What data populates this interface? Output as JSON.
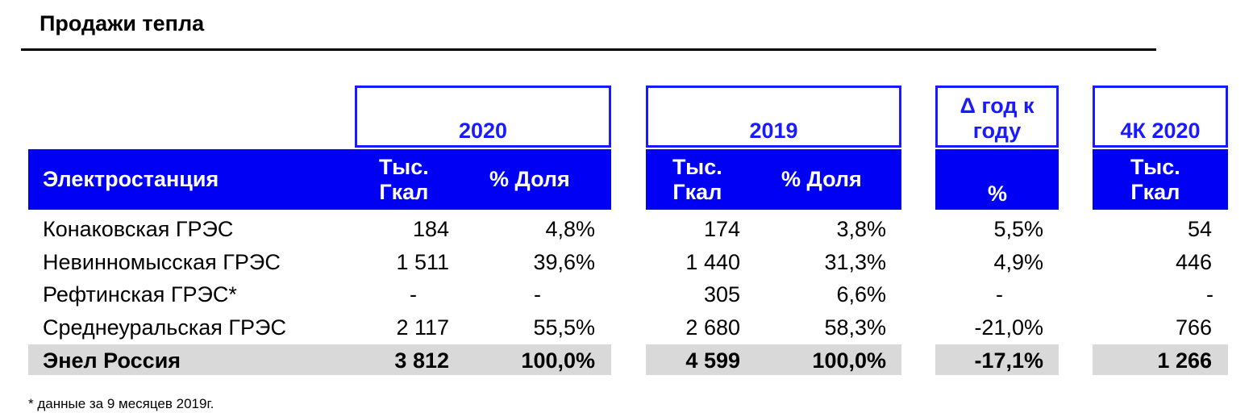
{
  "title": "Продажи тепла",
  "groups": {
    "y2020": "2020",
    "y2019": "2019",
    "delta": "Δ год к году",
    "q4": "4К 2020"
  },
  "headers": {
    "station": "Электростанция",
    "gcal_line1": "Тыс.",
    "gcal_line2": "Гкал",
    "share": "% Доля",
    "pct": "%"
  },
  "rows": [
    {
      "name": "Конаковская ГРЭС",
      "v2020": "184",
      "s2020": "4,8%",
      "v2019": "174",
      "s2019": "3,8%",
      "delta": "5,5%",
      "q4": "54"
    },
    {
      "name": "Невинномысская ГРЭС",
      "v2020": "1 511",
      "s2020": "39,6%",
      "v2019": "1 440",
      "s2019": "31,3%",
      "delta": "4,9%",
      "q4": "446"
    },
    {
      "name": "Рефтинская ГРЭС*",
      "v2020": "-",
      "s2020": "-",
      "v2019": "305",
      "s2019": "6,6%",
      "delta": "-",
      "q4": "-"
    },
    {
      "name": "Среднеуральская ГРЭС",
      "v2020": "2 117",
      "s2020": "55,5%",
      "v2019": "2 680",
      "s2019": "58,3%",
      "delta": "-21,0%",
      "q4": "766"
    }
  ],
  "total": {
    "name": "Энел Россия",
    "v2020": "3 812",
    "s2020": "100,0%",
    "v2019": "4 599",
    "s2019": "100,0%",
    "delta": "-17,1%",
    "q4": "1 266"
  },
  "footnote": "* данные за 9 месяцев 2019г.",
  "colors": {
    "accent": "#0000f5",
    "total_bg": "#d9d9d9"
  }
}
